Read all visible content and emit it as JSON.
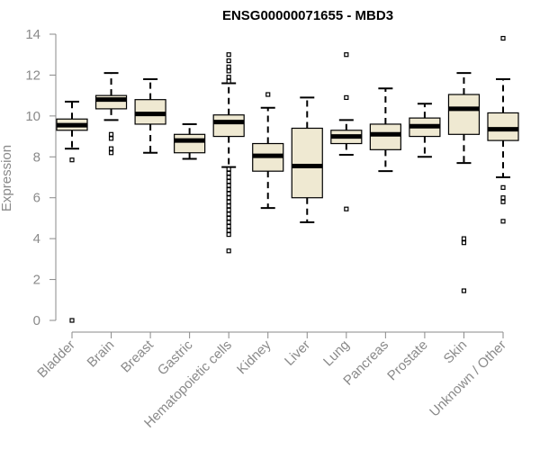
{
  "chart_data": {
    "type": "boxplot",
    "title": "ENSG00000071655 - MBD3",
    "xlabel": "",
    "ylabel": "Expression",
    "ylim": [
      0,
      14
    ],
    "yticks": [
      0,
      2,
      4,
      6,
      8,
      10,
      12,
      14
    ],
    "grid": false,
    "legend": "none",
    "colors": {
      "box_fill": "#efe9d2",
      "stroke": "#000000",
      "axis": "#8a8a8a"
    },
    "categories": [
      "Bladder",
      "Brain",
      "Breast",
      "Gastric",
      "Hematopoietic cells",
      "Kidney",
      "Liver",
      "Lung",
      "Pancreas",
      "Prostate",
      "Skin",
      "Unknown / Other"
    ],
    "boxes": [
      {
        "name": "Bladder",
        "whisker_low": 8.4,
        "q1": 9.3,
        "median": 9.55,
        "q3": 9.85,
        "whisker_high": 10.7,
        "outliers": [
          7.85,
          0.0
        ]
      },
      {
        "name": "Brain",
        "whisker_low": 9.8,
        "q1": 10.35,
        "median": 10.8,
        "q3": 11.0,
        "whisker_high": 12.1,
        "outliers": [
          9.1,
          8.9,
          8.4,
          8.2
        ]
      },
      {
        "name": "Breast",
        "whisker_low": 8.2,
        "q1": 9.6,
        "median": 10.1,
        "q3": 10.8,
        "whisker_high": 11.8,
        "outliers": []
      },
      {
        "name": "Gastric",
        "whisker_low": 7.9,
        "q1": 8.2,
        "median": 8.8,
        "q3": 9.1,
        "whisker_high": 9.6,
        "outliers": []
      },
      {
        "name": "Hematopoietic cells",
        "whisker_low": 7.5,
        "q1": 9.0,
        "median": 9.7,
        "q3": 10.05,
        "whisker_high": 11.6,
        "outliers": [
          13.0,
          12.7,
          12.4,
          12.2,
          11.9,
          11.7,
          7.4,
          7.2,
          7.0,
          6.8,
          6.6,
          6.4,
          6.2,
          6.0,
          5.8,
          5.6,
          5.4,
          5.2,
          5.0,
          4.8,
          4.6,
          4.4,
          4.2,
          3.4
        ]
      },
      {
        "name": "Kidney",
        "whisker_low": 5.5,
        "q1": 7.3,
        "median": 8.05,
        "q3": 8.65,
        "whisker_high": 10.4,
        "outliers": [
          11.05
        ]
      },
      {
        "name": "Liver",
        "whisker_low": 4.8,
        "q1": 6.0,
        "median": 7.55,
        "q3": 9.4,
        "whisker_high": 10.9,
        "outliers": []
      },
      {
        "name": "Lung",
        "whisker_low": 8.1,
        "q1": 8.65,
        "median": 9.0,
        "q3": 9.3,
        "whisker_high": 9.8,
        "outliers": [
          13.0,
          10.9,
          5.45
        ]
      },
      {
        "name": "Pancreas",
        "whisker_low": 7.3,
        "q1": 8.35,
        "median": 9.1,
        "q3": 9.6,
        "whisker_high": 11.35,
        "outliers": []
      },
      {
        "name": "Prostate",
        "whisker_low": 8.0,
        "q1": 9.0,
        "median": 9.5,
        "q3": 9.9,
        "whisker_high": 10.6,
        "outliers": []
      },
      {
        "name": "Skin",
        "whisker_low": 7.7,
        "q1": 9.1,
        "median": 10.35,
        "q3": 11.05,
        "whisker_high": 12.1,
        "outliers": [
          4.0,
          3.8,
          1.45
        ]
      },
      {
        "name": "Unknown / Other",
        "whisker_low": 7.0,
        "q1": 8.8,
        "median": 9.35,
        "q3": 10.15,
        "whisker_high": 11.8,
        "outliers": [
          13.8,
          6.5,
          6.0,
          5.8,
          4.85
        ]
      }
    ]
  }
}
